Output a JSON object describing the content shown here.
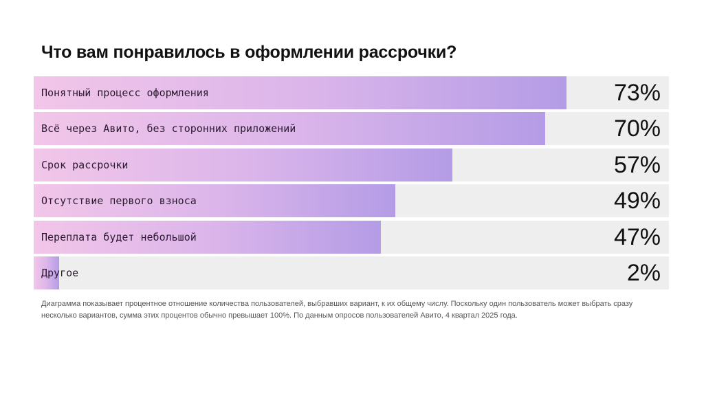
{
  "chart_data": {
    "type": "bar",
    "orientation": "horizontal",
    "title": "Что вам понравилось в оформлении рассрочки?",
    "categories": [
      "Понятный процесс оформления",
      "Всё через Авито, без сторонних приложений",
      "Срок рассрочки",
      "Отсутствие первого взноса",
      "Переплата будет небольшой",
      "Другое"
    ],
    "values": [
      73,
      70,
      57,
      49,
      47,
      2
    ],
    "value_labels": [
      "73%",
      "70%",
      "57%",
      "49%",
      "47%",
      "2%"
    ],
    "unit": "%",
    "xlim": [
      0,
      100
    ],
    "grid": false,
    "colors": {
      "gradient_start": "#f2c6e9",
      "gradient_end": "#b49ce6",
      "track": "#eeeeee"
    }
  },
  "footnote": "Диаграмма показывает процентное отношение количества пользователей, выбравших вариант, к их общему числу. Поскольку один пользователь может выбрать сразу несколько вариантов, сумма этих процентов обычно превышает 100%. По данным опросов пользователей Авито, 4 квартал 2025 года."
}
